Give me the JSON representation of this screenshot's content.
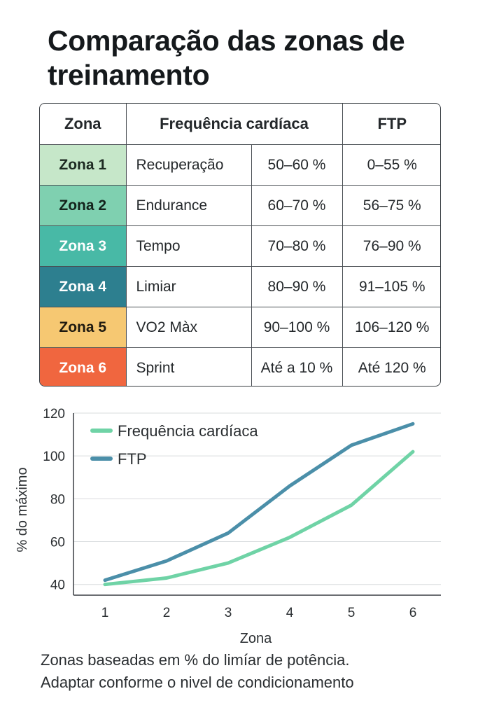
{
  "title": "Comparação das zonas de treinamento",
  "table": {
    "headers": {
      "zone": "Zona",
      "heart_rate": "Frequência cardíaca",
      "ftp": "FTP"
    },
    "rows": [
      {
        "zone": "Zona 1",
        "name": "Recuperação",
        "hr": "50–60 %",
        "ftp": "0–55 %",
        "color": "#c6e7c9",
        "text_color": "#1d2a22"
      },
      {
        "zone": "Zona 2",
        "name": "Endurance",
        "hr": "60–70 %",
        "ftp": "56–75 %",
        "color": "#7fd0b0",
        "text_color": "#13231c"
      },
      {
        "zone": "Zona 3",
        "name": "Tempo",
        "hr": "70–80 %",
        "ftp": "76–90 %",
        "color": "#48b9a6",
        "text_color": "#ffffff"
      },
      {
        "zone": "Zona 4",
        "name": "Limiar",
        "hr": "80–90 %",
        "ftp": "91–105 %",
        "color": "#2d7f8f",
        "text_color": "#ffffff"
      },
      {
        "zone": "Zona 5",
        "name": "VO2 Màx",
        "hr": "90–100 %",
        "ftp": "106–120 %",
        "color": "#f6c872",
        "text_color": "#1f1a10"
      },
      {
        "zone": "Zona 6",
        "name": "Sprint",
        "hr": "Até a 10 %",
        "ftp": "Até 120 %",
        "color": "#f0663f",
        "text_color": "#ffffff"
      }
    ]
  },
  "chart_data": {
    "type": "line",
    "x": [
      1,
      2,
      3,
      4,
      5,
      6
    ],
    "series": [
      {
        "name": "Frequência cardíaca",
        "values": [
          40,
          43,
          50,
          62,
          77,
          102
        ],
        "color": "#6fd3a6"
      },
      {
        "name": "FTP",
        "values": [
          42,
          51,
          64,
          86,
          105,
          115
        ],
        "color": "#4b8fa9"
      }
    ],
    "xlabel": "Zona",
    "ylabel": "% do máximo",
    "ylim": [
      35,
      120
    ],
    "yticks": [
      40,
      60,
      80,
      100,
      120
    ],
    "grid": true,
    "legend": "top-left"
  },
  "footnote": {
    "line1": "Zonas baseadas em % do limíar de potência.",
    "line2": "Adaptar conforme o nivel de condicionamento"
  }
}
